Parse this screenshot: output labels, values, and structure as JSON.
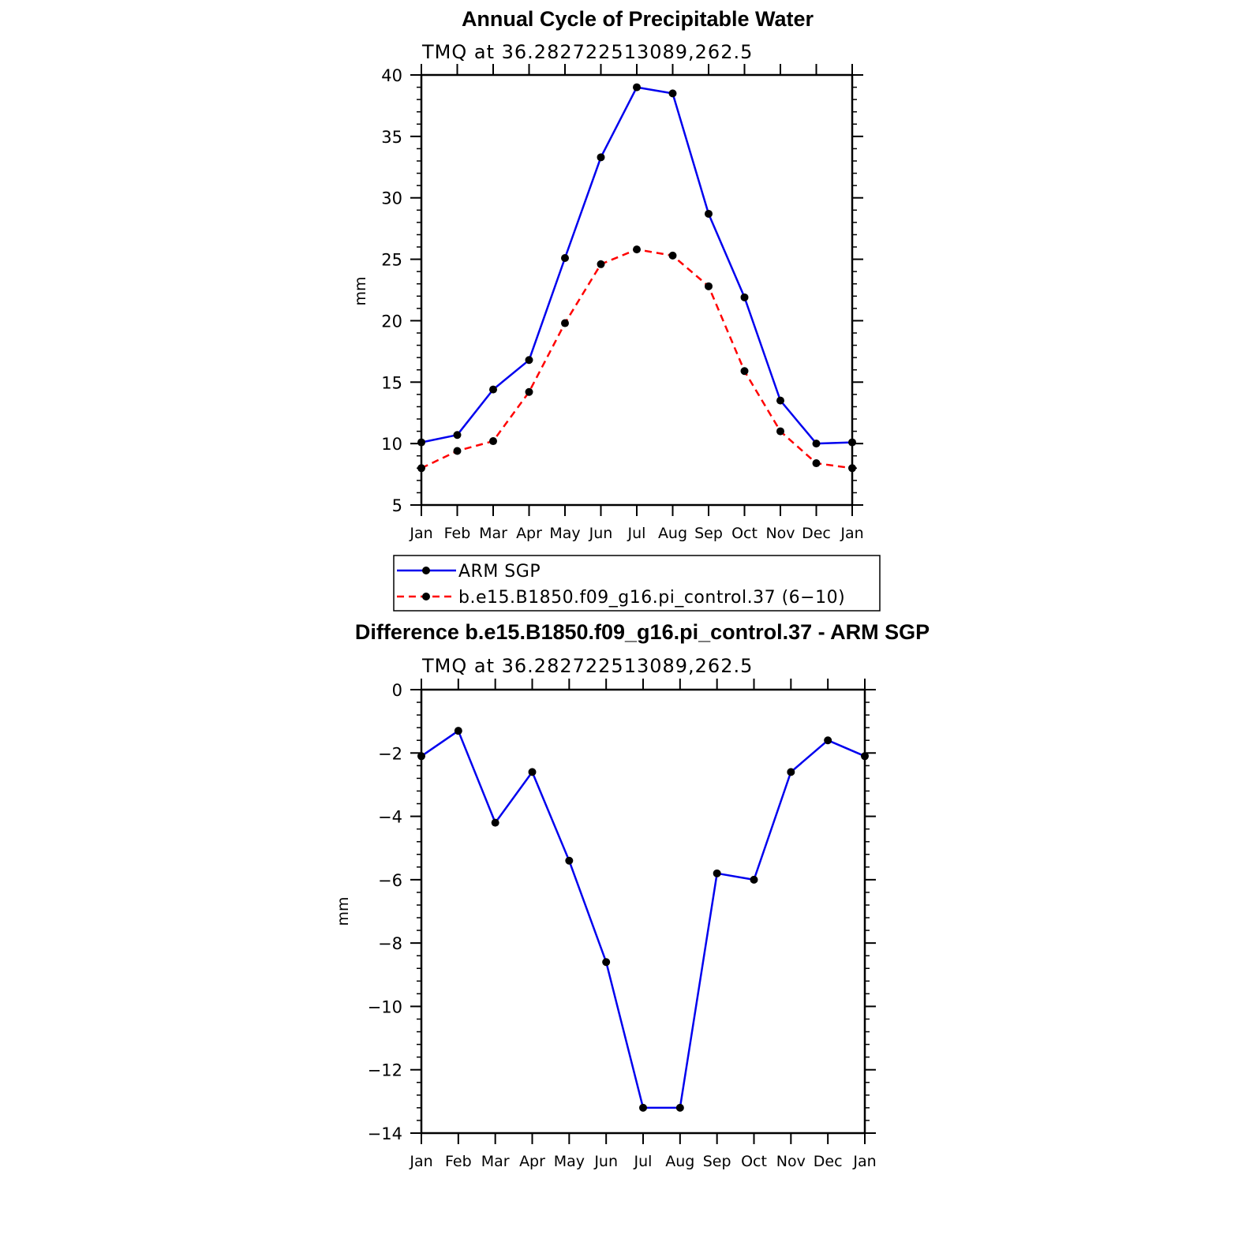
{
  "chart_data": [
    {
      "type": "line",
      "title": "Annual Cycle of Precipitable Water",
      "subtitle": "TMQ at 36.282722513089,262.5",
      "xlabel": "",
      "ylabel": "mm",
      "categories": [
        "Jan",
        "Feb",
        "Mar",
        "Apr",
        "May",
        "Jun",
        "Jul",
        "Aug",
        "Sep",
        "Oct",
        "Nov",
        "Dec",
        "Jan"
      ],
      "ylim": [
        5,
        40
      ],
      "yticks": [
        5,
        10,
        15,
        20,
        25,
        30,
        35,
        40
      ],
      "ytick_labels": [
        "5",
        "10",
        "15",
        "20",
        "25",
        "30",
        "35",
        "40"
      ],
      "series": [
        {
          "name": "ARM SGP",
          "color": "#0000ee",
          "dash": "solid",
          "values": [
            10.1,
            10.7,
            14.4,
            16.8,
            25.1,
            33.3,
            39.0,
            38.5,
            28.7,
            21.9,
            13.5,
            10.0,
            10.1
          ]
        },
        {
          "name": "b.e15.B1850.f09_g16.pi_control.37 (6−10)",
          "color": "#ff0000",
          "dash": "dashed",
          "values": [
            8.0,
            9.4,
            10.2,
            14.2,
            19.8,
            24.6,
            25.8,
            25.3,
            22.8,
            15.9,
            11.0,
            8.4,
            8.0
          ]
        }
      ],
      "legend_position": "below"
    },
    {
      "type": "line",
      "title": "Difference b.e15.B1850.f09_g16.pi_control.37 - ARM SGP",
      "subtitle": "TMQ at 36.282722513089,262.5",
      "xlabel": "",
      "ylabel": "mm",
      "categories": [
        "Jan",
        "Feb",
        "Mar",
        "Apr",
        "May",
        "Jun",
        "Jul",
        "Aug",
        "Sep",
        "Oct",
        "Nov",
        "Dec",
        "Jan"
      ],
      "ylim": [
        -14,
        0
      ],
      "yticks": [
        -14,
        -12,
        -10,
        -8,
        -6,
        -4,
        -2,
        0
      ],
      "ytick_labels": [
        "−14",
        "−12",
        "−10",
        "−8",
        "−6",
        "−4",
        "−2",
        "0"
      ],
      "series": [
        {
          "name": "Difference",
          "color": "#0000ee",
          "dash": "solid",
          "values": [
            -2.1,
            -1.3,
            -4.2,
            -2.6,
            -5.4,
            -8.6,
            -13.2,
            -13.2,
            -5.8,
            -6.0,
            -2.6,
            -1.6,
            -2.1
          ]
        }
      ]
    }
  ]
}
